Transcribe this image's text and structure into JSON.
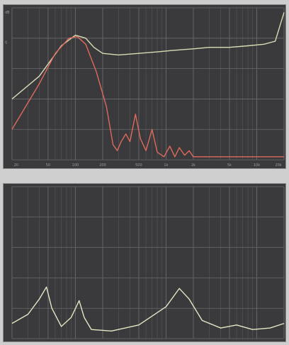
{
  "colors": {
    "background": "#cdcdcd",
    "plot_bg": "#3a3a3c",
    "grid": "#6a6a6e",
    "frequency_response_line": "#d8dcb4",
    "impedance_line": "#e4e6c6",
    "filtered_line": "#e06a5c"
  },
  "top_plot": {
    "y_tick_labels": [
      "dB",
      "0",
      "",
      "",
      "",
      "",
      ""
    ],
    "x_tick_labels": [
      "20",
      "50",
      "100",
      "200",
      "500",
      "1k",
      "2k",
      "5k",
      "10k",
      "20k"
    ],
    "series": [
      {
        "color_key": "frequency_response_line",
        "points": [
          [
            20,
            0.4
          ],
          [
            40,
            0.55
          ],
          [
            70,
            0.75
          ],
          [
            100,
            0.82
          ],
          [
            130,
            0.8
          ],
          [
            160,
            0.74
          ],
          [
            200,
            0.7
          ],
          [
            300,
            0.69
          ],
          [
            500,
            0.7
          ],
          [
            800,
            0.71
          ],
          [
            1200,
            0.72
          ],
          [
            2000,
            0.73
          ],
          [
            3000,
            0.74
          ],
          [
            5000,
            0.74
          ],
          [
            8000,
            0.75
          ],
          [
            12000,
            0.76
          ],
          [
            16000,
            0.78
          ],
          [
            20000,
            0.97
          ]
        ]
      },
      {
        "color_key": "filtered_line",
        "points": [
          [
            20,
            0.2
          ],
          [
            40,
            0.5
          ],
          [
            60,
            0.7
          ],
          [
            85,
            0.8
          ],
          [
            105,
            0.81
          ],
          [
            130,
            0.76
          ],
          [
            170,
            0.58
          ],
          [
            220,
            0.35
          ],
          [
            260,
            0.1
          ],
          [
            290,
            0.06
          ],
          [
            320,
            0.12
          ],
          [
            360,
            0.17
          ],
          [
            400,
            0.12
          ],
          [
            460,
            0.3
          ],
          [
            520,
            0.14
          ],
          [
            600,
            0.06
          ],
          [
            700,
            0.2
          ],
          [
            800,
            0.05
          ],
          [
            950,
            0.02
          ],
          [
            1100,
            0.09
          ],
          [
            1250,
            0.02
          ],
          [
            1400,
            0.08
          ],
          [
            1600,
            0.03
          ],
          [
            1800,
            0.06
          ],
          [
            2000,
            0.02
          ],
          [
            3000,
            0.02
          ],
          [
            20000,
            0.02
          ]
        ]
      }
    ]
  },
  "bottom_plot": {
    "series": [
      {
        "color_key": "impedance_line",
        "points": [
          [
            20,
            0.1
          ],
          [
            30,
            0.16
          ],
          [
            40,
            0.26
          ],
          [
            48,
            0.34
          ],
          [
            55,
            0.2
          ],
          [
            70,
            0.08
          ],
          [
            90,
            0.14
          ],
          [
            110,
            0.25
          ],
          [
            125,
            0.14
          ],
          [
            150,
            0.06
          ],
          [
            250,
            0.05
          ],
          [
            500,
            0.09
          ],
          [
            1000,
            0.21
          ],
          [
            1400,
            0.33
          ],
          [
            1800,
            0.26
          ],
          [
            2500,
            0.12
          ],
          [
            4000,
            0.07
          ],
          [
            6000,
            0.09
          ],
          [
            9000,
            0.06
          ],
          [
            14000,
            0.07
          ],
          [
            20000,
            0.1
          ]
        ]
      }
    ]
  }
}
